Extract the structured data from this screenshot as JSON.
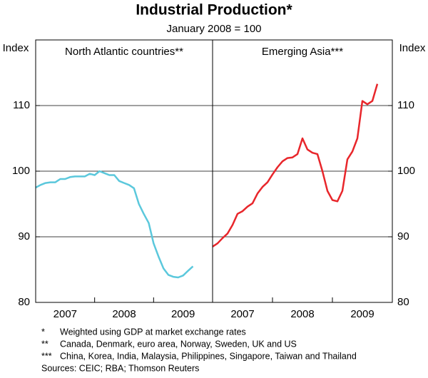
{
  "title": "Industrial Production*",
  "subtitle": "January 2008 = 100",
  "notes": [
    {
      "marker": "*",
      "text": "Weighted using GDP at market exchange rates"
    },
    {
      "marker": "**",
      "text": "Canada, Denmark, euro area, Norway, Sweden, UK and US"
    },
    {
      "marker": "***",
      "text": "China, Korea, India, Malaysia, Philippines, Singapore, Taiwan and Thailand"
    }
  ],
  "sources": "Sources: CEIC; RBA; Thomson Reuters",
  "chart_data": [
    {
      "type": "line",
      "title": "North Atlantic countries**",
      "y_label": "Index",
      "y_side": "left",
      "ylim": [
        80,
        120
      ],
      "yticks": [
        80,
        90,
        100,
        110
      ],
      "grid": true,
      "xlim": [
        2007,
        2010
      ],
      "xticks": [
        2008,
        2009
      ],
      "xlabels": [
        2007,
        2008,
        2009
      ],
      "x": [
        2007,
        2007.083,
        2007.167,
        2007.25,
        2007.333,
        2007.417,
        2007.5,
        2007.583,
        2007.667,
        2007.75,
        2007.833,
        2007.917,
        2008,
        2008.083,
        2008.167,
        2008.25,
        2008.333,
        2008.417,
        2008.5,
        2008.583,
        2008.667,
        2008.75,
        2008.833,
        2008.917,
        2009,
        2009.083,
        2009.167,
        2009.25,
        2009.333,
        2009.417,
        2009.5,
        2009.583,
        2009.667
      ],
      "series": [
        {
          "color": "#5bc8dc",
          "values": [
            97.5,
            97.9,
            98.2,
            98.3,
            98.3,
            98.8,
            98.8,
            99.1,
            99.2,
            99.2,
            99.2,
            99.6,
            99.4,
            100.0,
            99.7,
            99.4,
            99.4,
            98.5,
            98.2,
            97.9,
            97.4,
            95.0,
            93.5,
            92.1,
            89.0,
            87.0,
            85.2,
            84.2,
            83.9,
            83.8,
            84.1,
            84.8,
            85.5
          ]
        }
      ]
    },
    {
      "type": "line",
      "title": "Emerging Asia***",
      "y_label": "Index",
      "y_side": "right",
      "ylim": [
        80,
        120
      ],
      "yticks": [
        80,
        90,
        100,
        110
      ],
      "grid": true,
      "xlim": [
        2007,
        2010
      ],
      "xticks": [
        2008,
        2009
      ],
      "xlabels": [
        2007,
        2008,
        2009
      ],
      "x": [
        2007,
        2007.083,
        2007.167,
        2007.25,
        2007.333,
        2007.417,
        2007.5,
        2007.583,
        2007.667,
        2007.75,
        2007.833,
        2007.917,
        2008,
        2008.083,
        2008.167,
        2008.25,
        2008.333,
        2008.417,
        2008.5,
        2008.583,
        2008.667,
        2008.75,
        2008.833,
        2008.917,
        2009,
        2009.083,
        2009.167,
        2009.25,
        2009.333,
        2009.417,
        2009.5,
        2009.583,
        2009.667,
        2009.75
      ],
      "series": [
        {
          "color": "#e8262b",
          "values": [
            88.5,
            89.0,
            89.8,
            90.5,
            91.8,
            93.5,
            93.9,
            94.6,
            95.1,
            96.6,
            97.6,
            98.3,
            99.5,
            100.6,
            101.5,
            102.0,
            102.1,
            102.6,
            105.0,
            103.3,
            102.8,
            102.6,
            100.0,
            97.0,
            95.6,
            95.4,
            97.0,
            101.8,
            103.0,
            105.0,
            110.7,
            110.2,
            110.7,
            113.3
          ]
        }
      ]
    }
  ]
}
